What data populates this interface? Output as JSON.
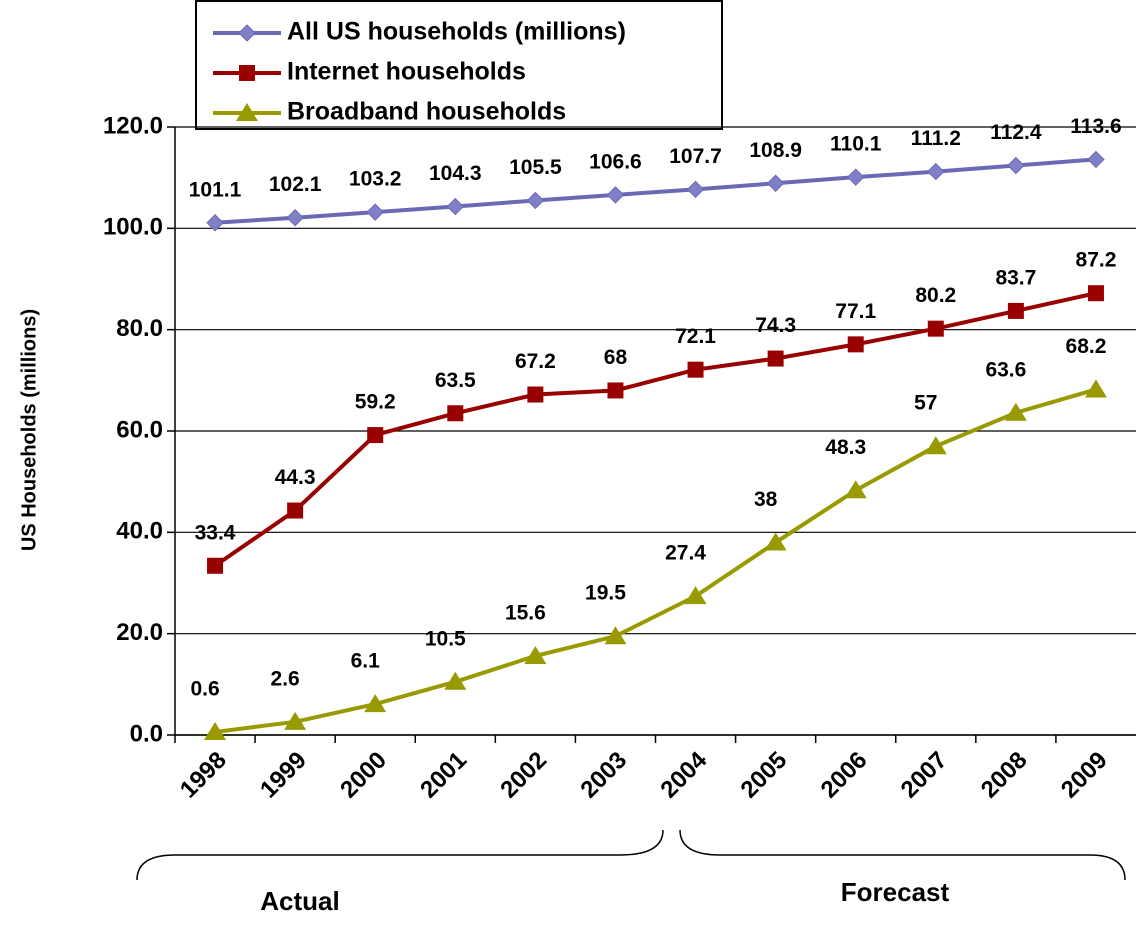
{
  "chart_data": {
    "type": "line",
    "y_label": "US Households (millions)",
    "categories": [
      "1998",
      "1999",
      "2000",
      "2001",
      "2002",
      "2003",
      "2004",
      "2005",
      "2006",
      "2007",
      "2008",
      "2009"
    ],
    "series": [
      {
        "name": "All US households (millions)",
        "color": "#6a6ab4",
        "marker": "diamond",
        "values": [
          101.1,
          102.1,
          103.2,
          104.3,
          105.5,
          106.6,
          107.7,
          108.9,
          110.1,
          111.2,
          112.4,
          113.6
        ]
      },
      {
        "name": "Internet households",
        "color": "#990000",
        "marker": "square",
        "values": [
          33.4,
          44.3,
          59.2,
          63.5,
          67.2,
          68,
          72.1,
          74.3,
          77.1,
          80.2,
          83.7,
          87.2
        ]
      },
      {
        "name": "Broadband households",
        "color": "#999900",
        "marker": "triangle",
        "values": [
          0.6,
          2.6,
          6.1,
          10.5,
          15.6,
          19.5,
          27.4,
          38,
          48.3,
          57,
          63.6,
          68.2
        ]
      }
    ],
    "ylim": [
      0,
      120
    ],
    "yticks": [
      {
        "value": 0,
        "label": "0.0"
      },
      {
        "value": 20,
        "label": "20.0"
      },
      {
        "value": 40,
        "label": "40.0"
      },
      {
        "value": 60,
        "label": "60.0"
      },
      {
        "value": 80,
        "label": "80.0"
      },
      {
        "value": 100,
        "label": "100.0"
      },
      {
        "value": 120,
        "label": "120.0"
      }
    ],
    "grid": true,
    "legend": "top-left",
    "annotations": [
      "Actual",
      "Forecast"
    ]
  }
}
